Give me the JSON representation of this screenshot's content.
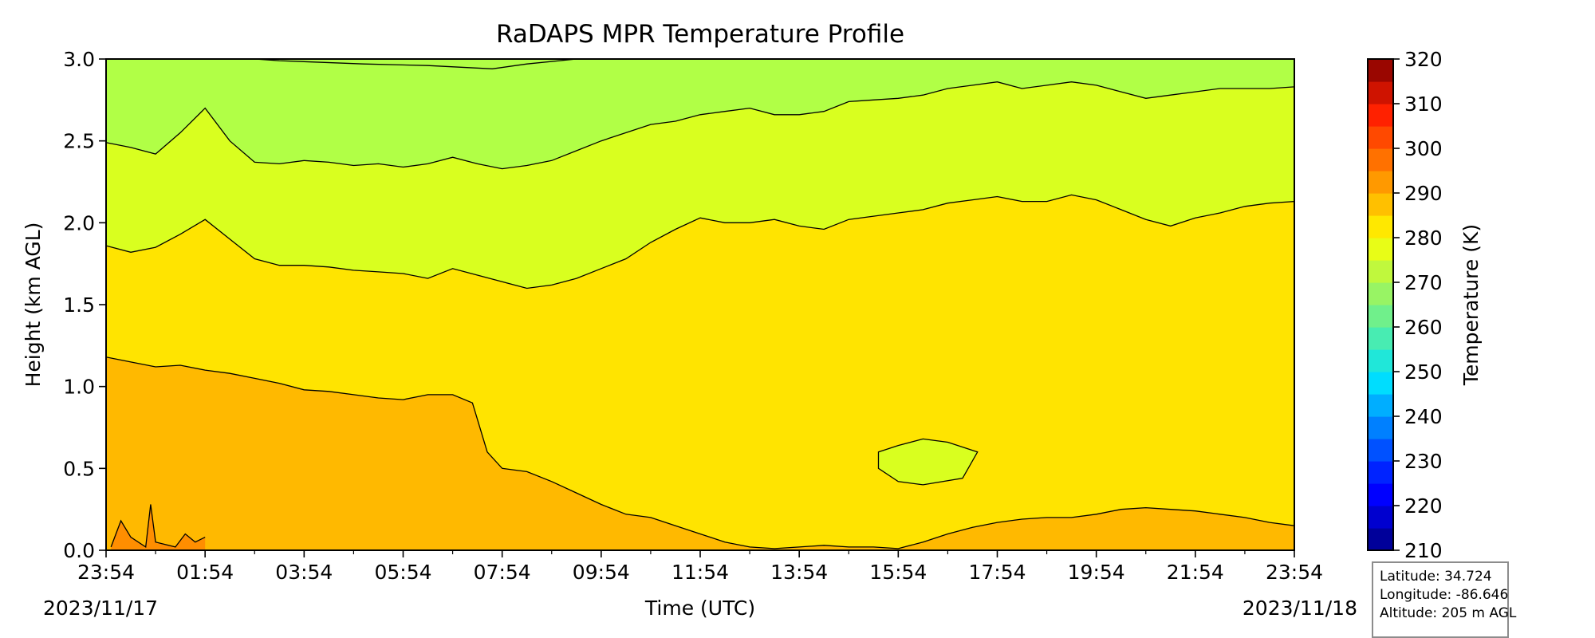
{
  "chart_data": {
    "type": "contour",
    "title": "RaDAPS MPR Temperature Profile",
    "xlabel": "Time (UTC)",
    "ylabel": "Height (km AGL)",
    "x_ticks": [
      "23:54",
      "01:54",
      "03:54",
      "05:54",
      "07:54",
      "09:54",
      "11:54",
      "13:54",
      "15:54",
      "17:54",
      "19:54",
      "21:54",
      "23:54"
    ],
    "x_dates": [
      "2023/11/17",
      "2023/11/18"
    ],
    "y_ticks": [
      "0.0",
      "0.5",
      "1.0",
      "1.5",
      "2.0",
      "2.5",
      "3.0"
    ],
    "ylim": [
      0,
      3.0
    ],
    "x_hours_range": [
      0,
      24
    ],
    "colorbar": {
      "label": "Temperature (K)",
      "ticks": [
        "210",
        "220",
        "230",
        "240",
        "250",
        "260",
        "270",
        "280",
        "290",
        "300",
        "310",
        "320"
      ],
      "range": [
        210,
        320
      ],
      "levels": [
        210,
        215,
        220,
        225,
        230,
        235,
        240,
        245,
        250,
        255,
        260,
        265,
        270,
        275,
        280,
        285,
        290,
        295,
        300,
        305,
        310,
        315,
        320
      ]
    },
    "contour_boundaries": [
      {
        "name": "285/290 K boundary",
        "points": [
          [
            0,
            1.18
          ],
          [
            0.5,
            1.15
          ],
          [
            1,
            1.12
          ],
          [
            1.5,
            1.13
          ],
          [
            2,
            1.1
          ],
          [
            2.5,
            1.08
          ],
          [
            3,
            1.05
          ],
          [
            3.5,
            1.02
          ],
          [
            4,
            0.98
          ],
          [
            4.5,
            0.97
          ],
          [
            5,
            0.95
          ],
          [
            5.5,
            0.93
          ],
          [
            6,
            0.92
          ],
          [
            6.5,
            0.95
          ],
          [
            7,
            0.95
          ],
          [
            7.4,
            0.9
          ],
          [
            7.7,
            0.6
          ],
          [
            8,
            0.5
          ],
          [
            8.5,
            0.48
          ],
          [
            9,
            0.42
          ],
          [
            9.5,
            0.35
          ],
          [
            10,
            0.28
          ],
          [
            10.5,
            0.22
          ],
          [
            11,
            0.2
          ],
          [
            11.5,
            0.15
          ],
          [
            12,
            0.1
          ],
          [
            12.5,
            0.05
          ],
          [
            13,
            0.02
          ],
          [
            13.5,
            0.01
          ],
          [
            14,
            0.02
          ],
          [
            14.5,
            0.03
          ],
          [
            15,
            0.02
          ],
          [
            15.5,
            0.02
          ],
          [
            16,
            0.01
          ],
          [
            16.5,
            0.05
          ],
          [
            17,
            0.1
          ],
          [
            17.5,
            0.14
          ],
          [
            18,
            0.17
          ],
          [
            18.5,
            0.19
          ],
          [
            19,
            0.2
          ],
          [
            19.5,
            0.2
          ],
          [
            20,
            0.22
          ],
          [
            20.5,
            0.25
          ],
          [
            21,
            0.26
          ],
          [
            21.5,
            0.25
          ],
          [
            22,
            0.24
          ],
          [
            22.5,
            0.22
          ],
          [
            23,
            0.2
          ],
          [
            23.5,
            0.17
          ],
          [
            24,
            0.15
          ]
        ]
      },
      {
        "name": "280/285 K boundary",
        "points": [
          [
            0,
            1.86
          ],
          [
            0.5,
            1.82
          ],
          [
            1,
            1.85
          ],
          [
            1.5,
            1.93
          ],
          [
            2,
            2.02
          ],
          [
            2.5,
            1.9
          ],
          [
            3,
            1.78
          ],
          [
            3.5,
            1.74
          ],
          [
            4,
            1.74
          ],
          [
            4.5,
            1.73
          ],
          [
            5,
            1.71
          ],
          [
            5.5,
            1.7
          ],
          [
            6,
            1.69
          ],
          [
            6.5,
            1.66
          ],
          [
            7,
            1.72
          ],
          [
            7.5,
            1.68
          ],
          [
            8,
            1.64
          ],
          [
            8.5,
            1.6
          ],
          [
            9,
            1.62
          ],
          [
            9.5,
            1.66
          ],
          [
            10,
            1.72
          ],
          [
            10.5,
            1.78
          ],
          [
            11,
            1.88
          ],
          [
            11.5,
            1.96
          ],
          [
            12,
            2.03
          ],
          [
            12.5,
            2.0
          ],
          [
            13,
            2.0
          ],
          [
            13.5,
            2.02
          ],
          [
            14,
            1.98
          ],
          [
            14.5,
            1.96
          ],
          [
            15,
            2.02
          ],
          [
            15.5,
            2.04
          ],
          [
            16,
            2.06
          ],
          [
            16.5,
            2.08
          ],
          [
            17,
            2.12
          ],
          [
            17.5,
            2.14
          ],
          [
            18,
            2.16
          ],
          [
            18.5,
            2.13
          ],
          [
            19,
            2.13
          ],
          [
            19.5,
            2.17
          ],
          [
            20,
            2.14
          ],
          [
            20.5,
            2.08
          ],
          [
            21,
            2.02
          ],
          [
            21.5,
            1.98
          ],
          [
            22,
            2.03
          ],
          [
            22.5,
            2.06
          ],
          [
            23,
            2.1
          ],
          [
            23.5,
            2.12
          ],
          [
            24,
            2.13
          ]
        ]
      },
      {
        "name": "275/280 K boundary",
        "points": [
          [
            0,
            2.49
          ],
          [
            0.5,
            2.46
          ],
          [
            1,
            2.42
          ],
          [
            1.5,
            2.55
          ],
          [
            2,
            2.7
          ],
          [
            2.5,
            2.5
          ],
          [
            3,
            2.37
          ],
          [
            3.5,
            2.36
          ],
          [
            4,
            2.38
          ],
          [
            4.5,
            2.37
          ],
          [
            5,
            2.35
          ],
          [
            5.5,
            2.36
          ],
          [
            6,
            2.34
          ],
          [
            6.5,
            2.36
          ],
          [
            7,
            2.4
          ],
          [
            7.5,
            2.36
          ],
          [
            8,
            2.33
          ],
          [
            8.5,
            2.35
          ],
          [
            9,
            2.38
          ],
          [
            9.5,
            2.44
          ],
          [
            10,
            2.5
          ],
          [
            10.5,
            2.55
          ],
          [
            11,
            2.6
          ],
          [
            11.5,
            2.62
          ],
          [
            12,
            2.66
          ],
          [
            12.5,
            2.68
          ],
          [
            13,
            2.7
          ],
          [
            13.5,
            2.66
          ],
          [
            14,
            2.66
          ],
          [
            14.5,
            2.68
          ],
          [
            15,
            2.74
          ],
          [
            15.5,
            2.75
          ],
          [
            16,
            2.76
          ],
          [
            16.5,
            2.78
          ],
          [
            17,
            2.82
          ],
          [
            17.5,
            2.84
          ],
          [
            18,
            2.86
          ],
          [
            18.5,
            2.82
          ],
          [
            19,
            2.84
          ],
          [
            19.5,
            2.86
          ],
          [
            20,
            2.84
          ],
          [
            20.5,
            2.8
          ],
          [
            21,
            2.76
          ],
          [
            21.5,
            2.78
          ],
          [
            22,
            2.8
          ],
          [
            22.5,
            2.82
          ],
          [
            23,
            2.82
          ],
          [
            23.5,
            2.82
          ],
          [
            24,
            2.83
          ]
        ]
      },
      {
        "name": "270/275 K boundary",
        "points": [
          [
            3,
            3.0
          ],
          [
            3.5,
            2.99
          ],
          [
            5.2,
            2.97
          ],
          [
            6.5,
            2.96
          ],
          [
            7.8,
            2.94
          ],
          [
            8.5,
            2.97
          ],
          [
            9.5,
            3.0
          ]
        ]
      },
      {
        "name": "warm surface pockets (290/295 K)",
        "points": [
          [
            0.1,
            0.02
          ],
          [
            0.3,
            0.18
          ],
          [
            0.5,
            0.08
          ],
          [
            0.8,
            0.02
          ],
          [
            0.9,
            0.28
          ],
          [
            1.0,
            0.05
          ],
          [
            1.4,
            0.02
          ],
          [
            1.6,
            0.1
          ],
          [
            1.8,
            0.05
          ],
          [
            2.0,
            0.08
          ]
        ]
      },
      {
        "name": "cool island (275/280 K)",
        "points": [
          [
            15.6,
            0.6
          ],
          [
            16.0,
            0.64
          ],
          [
            16.5,
            0.68
          ],
          [
            17.0,
            0.66
          ],
          [
            17.6,
            0.6
          ],
          [
            17.3,
            0.44
          ],
          [
            16.5,
            0.4
          ],
          [
            16.0,
            0.42
          ],
          [
            15.6,
            0.5
          ]
        ]
      }
    ]
  },
  "info_box": {
    "latitude": "Latitude: 34.724",
    "longitude": "Longitude: -86.646",
    "altitude": "Altitude: 205 m AGL"
  },
  "colors": {
    "band_270_275": "#b1ff46",
    "band_275_280": "#d9ff1f",
    "band_280_285": "#ffe400",
    "band_285_290": "#ffb900",
    "band_290_295": "#ff8e00"
  }
}
